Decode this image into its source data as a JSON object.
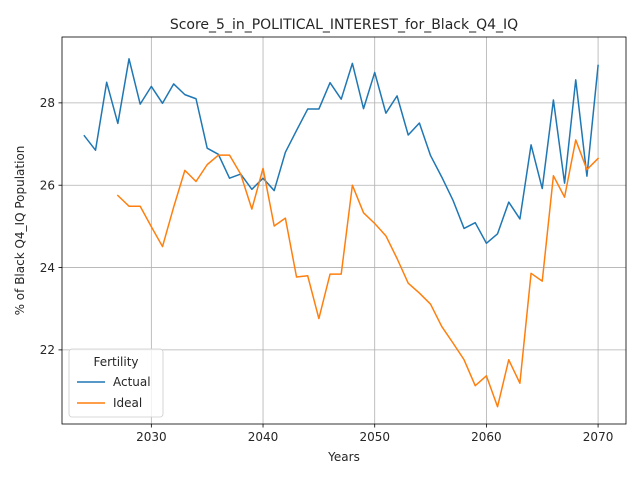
{
  "chart_data": {
    "type": "line",
    "title": "Score_5_in_POLITICAL_INTEREST_for_Black_Q4_IQ",
    "xlabel": "Years",
    "ylabel": "% of Black Q4_IQ Population",
    "xlim": [
      2022,
      2072.5
    ],
    "ylim": [
      20.2,
      29.6
    ],
    "xticks": [
      2030,
      2040,
      2050,
      2060,
      2070
    ],
    "yticks": [
      22,
      24,
      26,
      28
    ],
    "grid": true,
    "legend": {
      "title": "Fertility",
      "placement": "lower-left"
    },
    "series": [
      {
        "name": "Actual",
        "color": "#1f77b4",
        "x": [
          2024,
          2025,
          2026,
          2027,
          2028,
          2029,
          2030,
          2031,
          2032,
          2033,
          2034,
          2035,
          2036,
          2037,
          2038,
          2039,
          2040,
          2041,
          2042,
          2043,
          2044,
          2045,
          2046,
          2047,
          2048,
          2049,
          2050,
          2051,
          2052,
          2053,
          2054,
          2055,
          2056,
          2057,
          2058,
          2059,
          2060,
          2061,
          2062,
          2063,
          2064,
          2065,
          2066,
          2067,
          2068,
          2069,
          2070
        ],
        "y": [
          27.2,
          26.85,
          28.5,
          27.5,
          29.07,
          27.97,
          28.4,
          27.99,
          28.46,
          28.2,
          28.1,
          26.9,
          26.75,
          26.17,
          26.27,
          25.9,
          26.17,
          25.87,
          26.8,
          27.33,
          27.85,
          27.85,
          28.49,
          28.09,
          28.96,
          27.86,
          28.74,
          27.75,
          28.17,
          27.22,
          27.51,
          26.72,
          26.2,
          25.64,
          24.95,
          25.09,
          24.59,
          24.82,
          25.59,
          25.18,
          26.98,
          25.92,
          28.07,
          26.05,
          28.56,
          26.22,
          28.91
        ]
      },
      {
        "name": "Ideal",
        "color": "#ff7f0e",
        "x": [
          2027,
          2028,
          2029,
          2030,
          2031,
          2032,
          2033,
          2034,
          2035,
          2036,
          2037,
          2038,
          2039,
          2040,
          2041,
          2042,
          2043,
          2044,
          2045,
          2046,
          2047,
          2048,
          2049,
          2050,
          2051,
          2052,
          2053,
          2054,
          2055,
          2056,
          2057,
          2058,
          2059,
          2060,
          2061,
          2062,
          2063,
          2064,
          2065,
          2066,
          2067,
          2068,
          2069,
          2070
        ],
        "y": [
          25.75,
          25.49,
          25.49,
          24.99,
          24.51,
          25.47,
          26.36,
          26.09,
          26.5,
          26.73,
          26.73,
          26.27,
          25.42,
          26.41,
          25.01,
          25.2,
          23.77,
          23.8,
          22.76,
          23.84,
          23.84,
          26.0,
          25.33,
          25.07,
          24.77,
          24.22,
          23.62,
          23.38,
          23.11,
          22.57,
          22.17,
          21.76,
          21.13,
          21.37,
          20.62,
          21.76,
          21.19,
          23.86,
          23.67,
          26.23,
          25.71,
          27.1,
          26.38,
          26.65
        ]
      }
    ]
  }
}
